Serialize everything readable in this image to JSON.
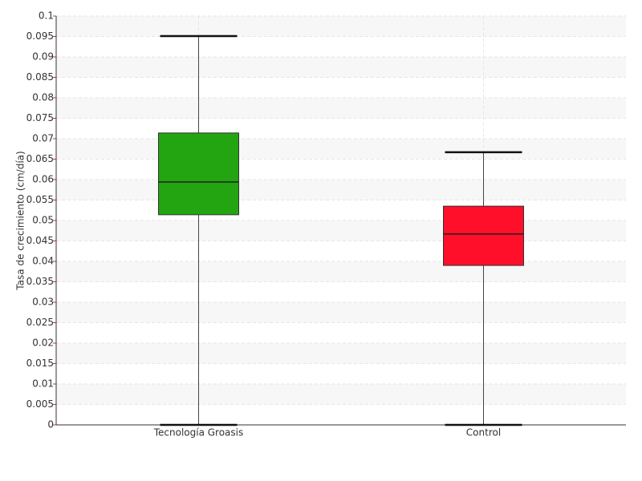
{
  "chart_data": {
    "type": "box",
    "y_label": "Tasa de crecimiento (cm/día)",
    "categories": [
      "Tecnología Groasis",
      "Control"
    ],
    "boxes": [
      {
        "min": 0,
        "q1": 0.0514,
        "median": 0.0594,
        "q3": 0.0714,
        "max": 0.0951,
        "color": "#22a511"
      },
      {
        "min": 0,
        "q1": 0.039,
        "median": 0.0467,
        "q3": 0.0535,
        "max": 0.0667,
        "color": "#ff0f2a"
      }
    ],
    "ylim": [
      0,
      0.1
    ],
    "yticks": [
      0,
      0.005,
      0.01,
      0.015,
      0.02,
      0.025,
      0.03,
      0.035,
      0.04,
      0.045,
      0.05,
      0.055,
      0.06,
      0.065,
      0.07,
      0.075,
      0.08,
      0.085,
      0.09,
      0.095,
      0.1
    ],
    "grid": true
  }
}
